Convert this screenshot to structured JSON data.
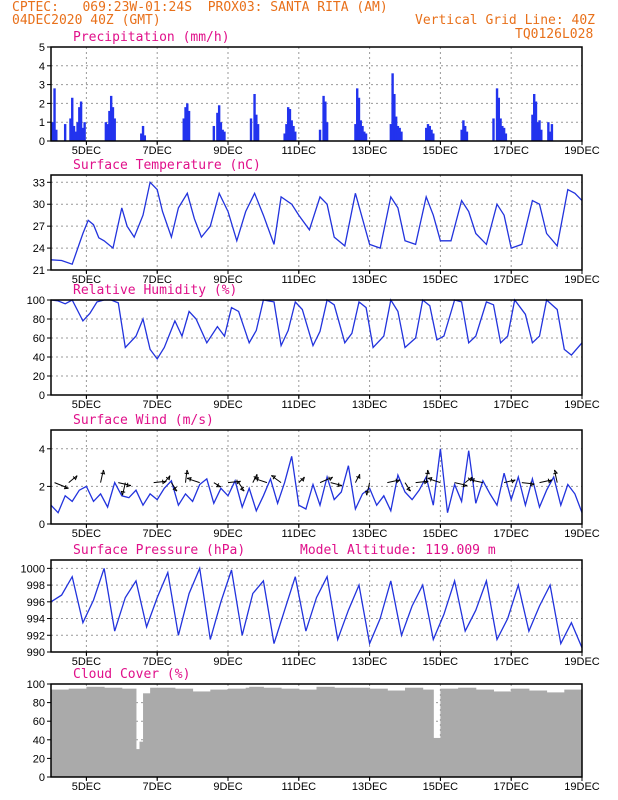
{
  "header": {
    "source": "CPTEC:",
    "coords": "069:23W-01:24S",
    "location": "PROX03: SANTA RITA (AM)",
    "run": "04DEC2020 40Z (GMT)",
    "grid_note": "Vertical Grid Line: 40Z",
    "model": "TQ0126L028"
  },
  "colors": {
    "line": "#2233dd",
    "bar": "#2233ee",
    "cloud": "#aaaaaa",
    "title": "#e0108a",
    "header": "#e8701a"
  },
  "x_axis": {
    "start_day": 4.0,
    "end_day": 19.0,
    "labels": [
      {
        "day": 5,
        "label": "5DEC"
      },
      {
        "day": 7,
        "label": "7DEC"
      },
      {
        "day": 9,
        "label": "9DEC"
      },
      {
        "day": 11,
        "label": "11DEC"
      },
      {
        "day": 13,
        "label": "13DEC"
      },
      {
        "day": 15,
        "label": "15DEC"
      },
      {
        "day": 17,
        "label": "17DEC"
      },
      {
        "day": 19,
        "label": "19DEC"
      }
    ]
  },
  "chart_data": [
    {
      "type": "bar",
      "title": "Precipitation (mm/h)",
      "ylim": [
        0,
        5
      ],
      "yticks": [
        "0",
        "1",
        "2",
        "3",
        "4",
        "5"
      ],
      "x_days": [
        4.05,
        4.1,
        4.15,
        4.4,
        4.55,
        4.6,
        4.65,
        4.7,
        4.75,
        4.8,
        4.85,
        4.9,
        4.95,
        5.55,
        5.6,
        5.65,
        5.7,
        5.75,
        5.8,
        6.55,
        6.6,
        6.65,
        7.75,
        7.8,
        7.85,
        7.9,
        8.6,
        8.7,
        8.75,
        8.8,
        8.85,
        8.9,
        9.65,
        9.75,
        9.8,
        9.85,
        10.6,
        10.65,
        10.7,
        10.75,
        10.8,
        10.85,
        10.9,
        11.6,
        11.7,
        11.75,
        11.8,
        12.6,
        12.65,
        12.7,
        12.75,
        12.8,
        12.85,
        12.9,
        13.6,
        13.65,
        13.7,
        13.75,
        13.8,
        13.85,
        13.9,
        14.6,
        14.65,
        14.7,
        14.75,
        14.8,
        15.6,
        15.65,
        15.7,
        15.75,
        16.5,
        16.6,
        16.65,
        16.7,
        16.75,
        16.8,
        16.85,
        17.6,
        17.65,
        17.7,
        17.75,
        17.8,
        17.85,
        18.05,
        18.1,
        18.15
      ],
      "values": [
        1.0,
        2.8,
        0.6,
        0.9,
        1.2,
        2.3,
        0.8,
        0.5,
        1.0,
        1.8,
        2.1,
        0.7,
        1.0,
        1.0,
        0.9,
        1.6,
        2.4,
        1.8,
        1.2,
        0.4,
        0.8,
        0.3,
        1.2,
        1.8,
        2.0,
        1.6,
        0.8,
        1.5,
        1.9,
        1.0,
        0.6,
        0.5,
        1.2,
        2.5,
        1.4,
        0.9,
        0.4,
        0.9,
        1.8,
        1.7,
        1.1,
        0.8,
        0.5,
        0.6,
        2.4,
        2.1,
        1.0,
        0.9,
        2.8,
        2.3,
        1.1,
        0.8,
        0.5,
        0.4,
        0.9,
        3.6,
        2.5,
        1.3,
        0.8,
        0.7,
        0.5,
        0.7,
        0.9,
        0.8,
        0.6,
        0.4,
        0.6,
        1.1,
        0.8,
        0.5,
        1.2,
        2.8,
        2.3,
        1.2,
        0.8,
        0.7,
        0.4,
        1.4,
        2.5,
        2.1,
        1.0,
        1.1,
        0.6,
        1.0,
        0.5,
        0.9
      ]
    },
    {
      "type": "line",
      "title": "Surface Temperature (nC)",
      "ylim": [
        21,
        34
      ],
      "yticks": [
        "21",
        "24",
        "27",
        "30",
        "33"
      ],
      "x_days": [
        4.0,
        4.3,
        4.6,
        4.9,
        5.05,
        5.2,
        5.35,
        5.5,
        5.75,
        6.0,
        6.15,
        6.35,
        6.6,
        6.8,
        7.0,
        7.15,
        7.4,
        7.6,
        7.85,
        8.05,
        8.25,
        8.5,
        8.75,
        9.0,
        9.25,
        9.5,
        9.75,
        10.0,
        10.3,
        10.5,
        10.8,
        11.0,
        11.3,
        11.6,
        11.8,
        12.0,
        12.3,
        12.6,
        12.8,
        13.0,
        13.3,
        13.6,
        13.8,
        14.0,
        14.3,
        14.6,
        14.8,
        15.0,
        15.3,
        15.6,
        15.8,
        16.0,
        16.3,
        16.6,
        16.8,
        17.0,
        17.3,
        17.6,
        17.8,
        18.0,
        18.3,
        18.6,
        18.8,
        19.0
      ],
      "values": [
        22.4,
        22.3,
        21.8,
        26.0,
        27.8,
        27.2,
        25.4,
        25.0,
        24.0,
        29.5,
        27.0,
        25.5,
        28.5,
        33.0,
        32.0,
        29.0,
        25.5,
        29.5,
        31.5,
        28.0,
        25.5,
        27.0,
        31.5,
        29.0,
        25.0,
        29.0,
        31.5,
        28.5,
        24.5,
        31.0,
        30.0,
        28.5,
        26.5,
        31.0,
        30.0,
        25.5,
        24.3,
        31.5,
        28.0,
        24.5,
        24.0,
        31.0,
        29.5,
        25.0,
        24.5,
        31.0,
        28.5,
        25.0,
        25.0,
        30.5,
        29.0,
        26.0,
        24.5,
        30.0,
        28.5,
        24.0,
        24.5,
        30.5,
        30.0,
        26.0,
        24.3,
        32.0,
        31.5,
        30.5
      ]
    },
    {
      "type": "line",
      "title": "Relative Humidity (%)",
      "ylim": [
        0,
        100
      ],
      "yticks": [
        "0",
        "20",
        "40",
        "60",
        "80",
        "100"
      ],
      "x_days": [
        4.0,
        4.2,
        4.4,
        4.6,
        4.9,
        5.1,
        5.3,
        5.5,
        5.7,
        5.9,
        6.1,
        6.4,
        6.6,
        6.8,
        7.0,
        7.2,
        7.5,
        7.7,
        7.9,
        8.1,
        8.4,
        8.7,
        8.9,
        9.1,
        9.3,
        9.6,
        9.8,
        10.0,
        10.3,
        10.5,
        10.7,
        10.9,
        11.1,
        11.4,
        11.6,
        11.8,
        12.0,
        12.3,
        12.5,
        12.7,
        12.9,
        13.1,
        13.4,
        13.6,
        13.8,
        14.0,
        14.3,
        14.5,
        14.7,
        14.9,
        15.1,
        15.4,
        15.6,
        15.8,
        16.0,
        16.3,
        16.5,
        16.7,
        16.9,
        17.1,
        17.4,
        17.6,
        17.8,
        18.0,
        18.3,
        18.5,
        18.7,
        19.0
      ],
      "values": [
        100,
        99,
        96,
        100,
        78,
        86,
        98,
        100,
        100,
        97,
        50,
        62,
        80,
        48,
        38,
        50,
        78,
        62,
        88,
        80,
        55,
        72,
        62,
        92,
        88,
        55,
        68,
        100,
        98,
        52,
        68,
        98,
        90,
        52,
        67,
        100,
        95,
        55,
        65,
        98,
        92,
        50,
        62,
        100,
        88,
        50,
        60,
        100,
        94,
        58,
        62,
        100,
        98,
        55,
        62,
        98,
        95,
        55,
        62,
        100,
        85,
        55,
        62,
        100,
        90,
        48,
        42,
        55
      ]
    },
    {
      "type": "line",
      "title": "Surface Wind (m/s)",
      "ylim": [
        0,
        5
      ],
      "yticks": [
        "0",
        "2",
        "4"
      ],
      "x_days": [
        4.0,
        4.2,
        4.4,
        4.6,
        4.8,
        5.0,
        5.2,
        5.4,
        5.6,
        5.8,
        6.0,
        6.2,
        6.4,
        6.6,
        6.8,
        7.0,
        7.2,
        7.4,
        7.6,
        7.8,
        8.0,
        8.2,
        8.4,
        8.6,
        8.8,
        9.0,
        9.2,
        9.4,
        9.6,
        9.8,
        10.0,
        10.2,
        10.4,
        10.6,
        10.8,
        11.0,
        11.2,
        11.4,
        11.6,
        11.8,
        12.0,
        12.2,
        12.4,
        12.6,
        12.8,
        13.0,
        13.2,
        13.4,
        13.6,
        13.8,
        14.0,
        14.2,
        14.4,
        14.6,
        14.8,
        15.0,
        15.2,
        15.4,
        15.6,
        15.8,
        16.0,
        16.2,
        16.4,
        16.6,
        16.8,
        17.0,
        17.2,
        17.4,
        17.6,
        17.8,
        18.0,
        18.2,
        18.4,
        18.6,
        18.8,
        19.0
      ],
      "values": [
        1.0,
        0.6,
        1.5,
        1.2,
        1.8,
        2.0,
        1.2,
        1.6,
        0.9,
        2.2,
        1.5,
        1.4,
        1.8,
        1.0,
        1.6,
        1.3,
        1.9,
        2.3,
        1.0,
        1.6,
        1.2,
        2.1,
        2.4,
        1.1,
        1.9,
        1.5,
        2.3,
        0.9,
        1.9,
        0.7,
        1.5,
        2.4,
        1.1,
        2.2,
        3.6,
        1.0,
        0.8,
        2.1,
        1.0,
        2.5,
        1.3,
        1.7,
        3.1,
        0.8,
        1.6,
        1.9,
        1.0,
        1.5,
        0.7,
        2.6,
        1.7,
        1.3,
        1.8,
        2.5,
        1.0,
        4.0,
        0.6,
        2.1,
        1.2,
        3.9,
        1.1,
        2.3,
        1.6,
        1.0,
        2.7,
        1.3,
        2.5,
        1.0,
        2.4,
        0.9,
        1.8,
        2.5,
        1.0,
        2.1,
        1.6,
        0.6
      ],
      "arrows": [
        {
          "day": 4.1,
          "u": 1,
          "v": -0.4
        },
        {
          "day": 4.5,
          "u": 0.6,
          "v": 0.5
        },
        {
          "day": 5.4,
          "u": 0.2,
          "v": 0.9
        },
        {
          "day": 5.9,
          "u": 0.9,
          "v": -0.2
        },
        {
          "day": 6.1,
          "u": -0.2,
          "v": -0.9
        },
        {
          "day": 6.9,
          "u": 0.9,
          "v": 0.1
        },
        {
          "day": 7.2,
          "u": 0.4,
          "v": 0.5
        },
        {
          "day": 7.4,
          "u": 0.4,
          "v": -0.6
        },
        {
          "day": 7.8,
          "u": 0.1,
          "v": 0.9
        },
        {
          "day": 8.2,
          "u": -0.9,
          "v": 0.3
        },
        {
          "day": 8.6,
          "u": 0.5,
          "v": -0.3
        },
        {
          "day": 9.0,
          "u": 0.9,
          "v": 0.1
        },
        {
          "day": 9.3,
          "u": 0.4,
          "v": -0.6
        },
        {
          "day": 9.7,
          "u": 0.3,
          "v": 0.6
        },
        {
          "day": 10.1,
          "u": -0.9,
          "v": 0.3
        },
        {
          "day": 10.5,
          "u": -0.7,
          "v": 0.5
        },
        {
          "day": 11.0,
          "u": 0.4,
          "v": 0.4
        },
        {
          "day": 11.6,
          "u": 0.9,
          "v": 0.4
        },
        {
          "day": 11.9,
          "u": 0.8,
          "v": -0.2
        },
        {
          "day": 12.6,
          "u": 0.3,
          "v": 0.6
        },
        {
          "day": 13.0,
          "u": -0.2,
          "v": -0.9
        },
        {
          "day": 13.5,
          "u": 0.9,
          "v": 0.2
        },
        {
          "day": 14.0,
          "u": 0.4,
          "v": -0.6
        },
        {
          "day": 14.3,
          "u": 0.9,
          "v": 0.1
        },
        {
          "day": 14.6,
          "u": 0.1,
          "v": 0.9
        },
        {
          "day": 15.0,
          "u": -0.9,
          "v": 0.3
        },
        {
          "day": 15.4,
          "u": 0.9,
          "v": -0.2
        },
        {
          "day": 15.7,
          "u": 0.5,
          "v": 0.4
        },
        {
          "day": 16.2,
          "u": -0.9,
          "v": 0.2
        },
        {
          "day": 16.8,
          "u": 0.8,
          "v": 0.2
        },
        {
          "day": 17.3,
          "u": 0.9,
          "v": -0.1
        },
        {
          "day": 17.8,
          "u": 0.9,
          "v": 0.2
        },
        {
          "day": 18.3,
          "u": -0.2,
          "v": 0.9
        }
      ]
    },
    {
      "type": "line",
      "title": "Surface Pressure (hPa)",
      "extra_label": "Model Altitude: 119.009 m",
      "ylim": [
        990,
        1001
      ],
      "yticks": [
        "990",
        "992",
        "994",
        "996",
        "998",
        "1000"
      ],
      "x_days": [
        4.0,
        4.3,
        4.6,
        4.9,
        5.2,
        5.5,
        5.8,
        6.1,
        6.4,
        6.7,
        7.0,
        7.3,
        7.6,
        7.9,
        8.2,
        8.5,
        8.8,
        9.1,
        9.4,
        9.7,
        10.0,
        10.3,
        10.6,
        10.9,
        11.2,
        11.5,
        11.8,
        12.1,
        12.4,
        12.7,
        13.0,
        13.3,
        13.6,
        13.9,
        14.2,
        14.5,
        14.8,
        15.1,
        15.4,
        15.7,
        16.0,
        16.3,
        16.6,
        16.9,
        17.2,
        17.5,
        17.8,
        18.1,
        18.4,
        18.7,
        19.0
      ],
      "values": [
        996.0,
        996.8,
        999.0,
        993.5,
        996.2,
        1000.0,
        992.5,
        996.5,
        998.5,
        993.0,
        996.5,
        999.5,
        992.0,
        997.0,
        1000.0,
        991.5,
        996.0,
        999.8,
        992.0,
        997.0,
        998.5,
        991.0,
        995.0,
        999.0,
        992.5,
        996.5,
        999.0,
        991.5,
        995.0,
        998.0,
        991.0,
        994.0,
        998.5,
        992.0,
        995.5,
        998.0,
        991.5,
        994.5,
        998.5,
        992.5,
        995.0,
        998.5,
        991.5,
        994.0,
        998.0,
        992.5,
        995.5,
        998.0,
        991.0,
        993.5,
        990.5
      ]
    },
    {
      "type": "bar",
      "title": "Cloud Cover (%)",
      "ylim": [
        0,
        100
      ],
      "yticks": [
        "0",
        "20",
        "40",
        "60",
        "80",
        "100"
      ],
      "x_days": [
        4.0,
        4.5,
        5.0,
        5.5,
        6.0,
        6.4,
        6.5,
        6.6,
        6.8,
        7.0,
        7.5,
        8.0,
        8.5,
        9.0,
        9.5,
        9.6,
        10.0,
        10.5,
        11.0,
        11.5,
        12.0,
        12.5,
        13.0,
        13.5,
        14.0,
        14.5,
        14.8,
        15.0,
        15.5,
        16.0,
        16.5,
        17.0,
        17.5,
        18.0,
        18.5,
        19.0
      ],
      "values": [
        94,
        95,
        97,
        96,
        95,
        30,
        38,
        90,
        96,
        96,
        95,
        92,
        94,
        95,
        96,
        97,
        96,
        95,
        94,
        97,
        96,
        96,
        95,
        93,
        96,
        94,
        42,
        95,
        96,
        94,
        92,
        95,
        93,
        91,
        94,
        96
      ]
    }
  ]
}
